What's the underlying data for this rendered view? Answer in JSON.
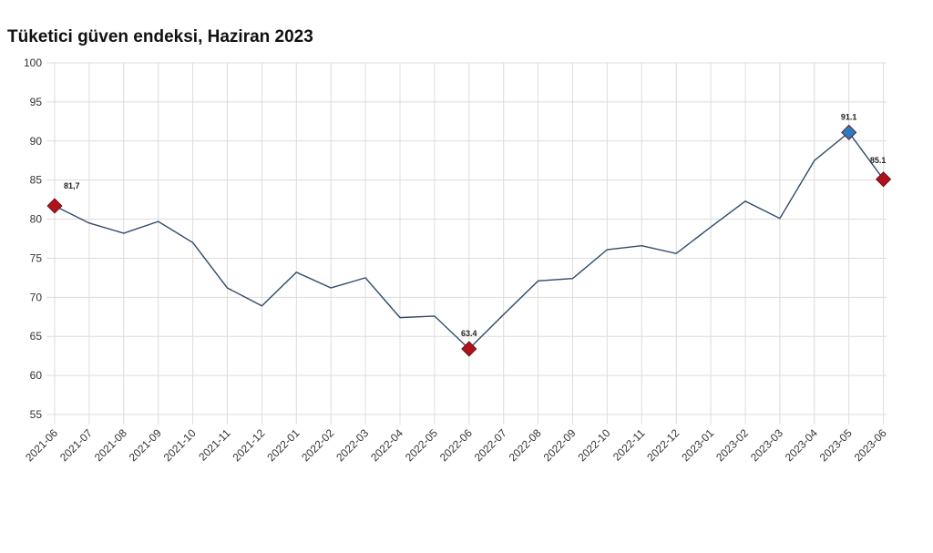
{
  "title": "Tüketici güven endeksi, Haziran 2023",
  "colors": {
    "line": "#2f4a6a",
    "grid": "#dcdcdc",
    "marker_red": "#b0121b",
    "marker_blue": "#2e7bbf"
  },
  "chart_data": {
    "type": "line",
    "title": "Tüketici güven endeksi, Haziran 2023",
    "xlabel": "",
    "ylabel": "",
    "ylim": [
      55,
      100
    ],
    "yticks": [
      100,
      95,
      90,
      85,
      80,
      75,
      70,
      65,
      60,
      55
    ],
    "grid": true,
    "legend": null,
    "categories": [
      "2021-06",
      "2021-07",
      "2021-08",
      "2021-09",
      "2021-10",
      "2021-11",
      "2021-12",
      "2022-01",
      "2022-02",
      "2022-03",
      "2022-04",
      "2022-05",
      "2022-06",
      "2022-07",
      "2022-08",
      "2022-09",
      "2022-10",
      "2022-11",
      "2022-12",
      "2023-01",
      "2023-02",
      "2023-03",
      "2023-04",
      "2023-05",
      "2023-06"
    ],
    "series": [
      {
        "name": "Tüketici güven endeksi",
        "values": [
          81.7,
          79.5,
          78.2,
          79.7,
          77.0,
          71.2,
          68.9,
          73.2,
          71.2,
          72.5,
          67.4,
          67.6,
          63.4,
          67.8,
          72.1,
          72.4,
          76.1,
          76.6,
          75.6,
          79.0,
          82.3,
          80.1,
          87.5,
          91.1,
          85.1
        ]
      }
    ],
    "annotations": [
      {
        "index": 0,
        "label": "81,7",
        "marker": "diamond",
        "color": "#b0121b"
      },
      {
        "index": 12,
        "label": "63.4",
        "marker": "diamond",
        "color": "#b0121b"
      },
      {
        "index": 23,
        "label": "91.1",
        "marker": "diamond",
        "color": "#2e7bbf"
      },
      {
        "index": 24,
        "label": "85.1",
        "marker": "diamond",
        "color": "#b0121b"
      }
    ]
  }
}
